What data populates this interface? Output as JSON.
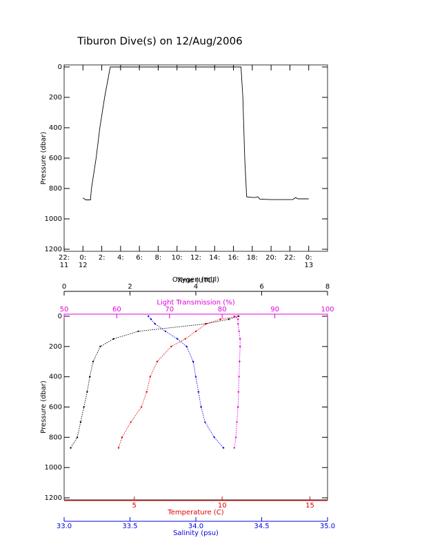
{
  "chart_data": [
    {
      "type": "line",
      "title": "Tiburon Dive(s) on 12/Aug/2006",
      "x_label": "Time (UTC)",
      "y_label": "Pressure (dbar)",
      "xlim": [
        -2,
        26
      ],
      "ylim": [
        1200,
        0
      ],
      "xticks": [
        {
          "value": -2,
          "label": "22:\n11"
        },
        {
          "value": 0,
          "label": "0:\n12"
        },
        {
          "value": 2,
          "label": "2:"
        },
        {
          "value": 4,
          "label": "4:"
        },
        {
          "value": 6,
          "label": "6:"
        },
        {
          "value": 8,
          "label": "8:"
        },
        {
          "value": 10,
          "label": "10:"
        },
        {
          "value": 12,
          "label": "12:"
        },
        {
          "value": 14,
          "label": "14:"
        },
        {
          "value": 16,
          "label": "16:"
        },
        {
          "value": 18,
          "label": "18:"
        },
        {
          "value": 20,
          "label": "20:"
        },
        {
          "value": 22,
          "label": "22:"
        },
        {
          "value": 24,
          "label": "0:\n13"
        }
      ],
      "yticks": [
        0,
        200,
        400,
        600,
        800,
        1000,
        1200
      ],
      "x": [
        0,
        0.3,
        0.8,
        0.9,
        1.4,
        1.8,
        2.3,
        2.9,
        6,
        10,
        14,
        16.8,
        17.0,
        17.2,
        17.4,
        18.2,
        18.6,
        18.8,
        20,
        22.3,
        22.6,
        22.9,
        24
      ],
      "series": [
        {
          "color": "#000000",
          "values": [
            862,
            875,
            875,
            800,
            600,
            400,
            200,
            0,
            0,
            0,
            0,
            0,
            200,
            600,
            855,
            860,
            855,
            870,
            873,
            873,
            860,
            868,
            868
          ]
        }
      ]
    },
    {
      "type": "profile",
      "y_label": "Pressure (dbar)",
      "ylim": [
        1200,
        0
      ],
      "yticks": [
        0,
        200,
        400,
        600,
        800,
        1000,
        1200
      ],
      "y": [
        0,
        20,
        50,
        100,
        150,
        200,
        300,
        400,
        500,
        600,
        700,
        800,
        870
      ],
      "x_axes": [
        {
          "label": "Oxygen (ml/l)",
          "color": "#000000",
          "position": "top",
          "lim": [
            0,
            8
          ],
          "ticks": [
            0,
            2,
            4,
            6,
            8
          ]
        },
        {
          "label": "Light Transmission (%)",
          "color": "#e000e0",
          "position": "top",
          "lim": [
            50,
            100
          ],
          "ticks": [
            50,
            60,
            70,
            80,
            90,
            100
          ]
        },
        {
          "label": "Temperature (C)",
          "color": "#e00000",
          "position": "bottom",
          "lim": [
            1,
            16
          ],
          "ticks": [
            5,
            10,
            15
          ]
        },
        {
          "label": "Salinity (psu)",
          "color": "#0000e0",
          "position": "bottom",
          "lim": [
            33,
            35
          ],
          "ticks": [
            {
              "value": 33,
              "label": "33.0"
            },
            33.5,
            {
              "value": 34,
              "label": "34.0"
            },
            34.5,
            {
              "value": 35,
              "label": "35.0"
            }
          ]
        }
      ],
      "series": [
        {
          "axis": 0,
          "color": "#000000",
          "values": [
            5.3,
            5.0,
            4.3,
            2.25,
            1.5,
            1.1,
            0.88,
            0.78,
            0.7,
            0.6,
            0.5,
            0.4,
            0.2
          ]
        },
        {
          "axis": 1,
          "color": "#e000e0",
          "values": [
            82.3,
            83,
            83,
            83.2,
            83.4,
            83.4,
            83.3,
            83.2,
            83.1,
            83,
            82.8,
            82.6,
            82.3
          ]
        },
        {
          "axis": 2,
          "color": "#e00000",
          "values": [
            10.9,
            9.9,
            9.1,
            8.5,
            7.9,
            7.1,
            6.3,
            5.9,
            5.7,
            5.4,
            4.8,
            4.3,
            4.1
          ]
        },
        {
          "axis": 3,
          "color": "#0000e0",
          "values": [
            33.64,
            33.66,
            33.69,
            33.77,
            33.86,
            33.93,
            33.98,
            34.0,
            34.02,
            34.04,
            34.07,
            34.14,
            34.21
          ]
        }
      ]
    }
  ]
}
